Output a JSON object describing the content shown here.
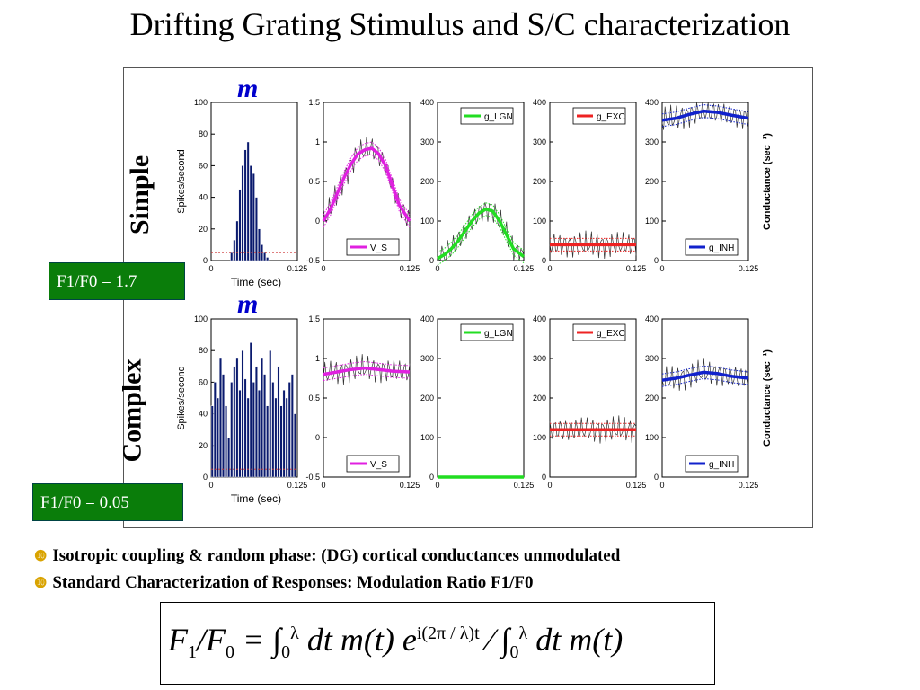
{
  "title": "Drifting Grating Stimulus and S/C characterization",
  "rows": [
    {
      "label": "Simple",
      "ratio": "F1/F0 = 1.7",
      "m_label": "m"
    },
    {
      "label": "Complex",
      "ratio": "F1/F0 = 0.05",
      "m_label": "m"
    }
  ],
  "bullets": [
    "Isotropic coupling & random phase: (DG) cortical conductances unmodulated",
    "Standard Characterization of Responses: Modulation Ratio F1/F0"
  ],
  "bullet_marker": "❿",
  "formula": {
    "lhs": "F",
    "lhs_sub1": "1",
    "slash": "/",
    "lhs2": "F",
    "lhs_sub0": "0",
    "eq": " = ∫",
    "upper": "λ",
    "lower": "0",
    "body1": "dt m(t) e",
    "exp": "i(2π / λ)t",
    "divider": " ⁄ ∫",
    "body2": "dt m(t)"
  },
  "chart_data": [
    {
      "type": "bar",
      "row": "Simple",
      "panel": "spikes",
      "ylabel": "Spikes/second",
      "xlabel": "Time (sec)",
      "xlim": [
        0,
        0.125
      ],
      "ylim": [
        0,
        100
      ],
      "xticks": [
        "0",
        "0.125"
      ],
      "yticks": [
        "0",
        "20",
        "40",
        "60",
        "80",
        "100"
      ],
      "bin_width": 0.004,
      "x_start": 0.028,
      "values": [
        5,
        13,
        25,
        45,
        60,
        70,
        75,
        60,
        55,
        40,
        20,
        10,
        5,
        2
      ]
    },
    {
      "type": "line",
      "row": "Simple",
      "panel": "V",
      "legend": "V_S",
      "legend_color": "#e020e0",
      "xlim": [
        0,
        0.125
      ],
      "ylim": [
        -0.5,
        1.5
      ],
      "xticks": [
        "0",
        "0.125"
      ],
      "yticks": [
        "-0.5",
        "0",
        "0.5",
        "1",
        "1.5"
      ],
      "x": [
        0,
        0.01,
        0.02,
        0.03,
        0.04,
        0.05,
        0.06,
        0.07,
        0.08,
        0.09,
        0.1,
        0.11,
        0.125
      ],
      "values": [
        0,
        0.15,
        0.35,
        0.55,
        0.72,
        0.85,
        0.9,
        0.92,
        0.85,
        0.7,
        0.45,
        0.2,
        0
      ]
    },
    {
      "type": "line",
      "row": "Simple",
      "panel": "gLGN",
      "legend": "g_LGN",
      "legend_color": "#22dd22",
      "xlim": [
        0,
        0.125
      ],
      "ylim": [
        0,
        400
      ],
      "xticks": [
        "0",
        "0.125"
      ],
      "yticks": [
        "0",
        "100",
        "200",
        "300",
        "400"
      ],
      "x": [
        0,
        0.01,
        0.02,
        0.03,
        0.04,
        0.05,
        0.06,
        0.07,
        0.08,
        0.09,
        0.1,
        0.11,
        0.125
      ],
      "values": [
        5,
        15,
        30,
        50,
        75,
        100,
        120,
        130,
        125,
        100,
        65,
        30,
        10
      ]
    },
    {
      "type": "line",
      "row": "Simple",
      "panel": "gEXC",
      "legend": "g_EXC",
      "legend_color": "#ee2222",
      "xlim": [
        0,
        0.125
      ],
      "ylim": [
        0,
        400
      ],
      "xticks": [
        "0",
        "0.125"
      ],
      "yticks": [
        "0",
        "100",
        "200",
        "300",
        "400"
      ],
      "x": [
        0,
        0.125
      ],
      "values": [
        40,
        40
      ]
    },
    {
      "type": "line",
      "row": "Simple",
      "panel": "gINH",
      "legend": "g_INH",
      "legend_color": "#1122cc",
      "ylabel": "Conductance (sec⁻¹)",
      "xlim": [
        0,
        0.125
      ],
      "ylim": [
        0,
        400
      ],
      "xticks": [
        "0",
        "0.125"
      ],
      "yticks": [
        "0",
        "100",
        "200",
        "300",
        "400"
      ],
      "x": [
        0,
        0.02,
        0.04,
        0.06,
        0.08,
        0.1,
        0.125
      ],
      "values": [
        355,
        360,
        370,
        378,
        375,
        368,
        360
      ]
    },
    {
      "type": "bar",
      "row": "Complex",
      "panel": "spikes",
      "ylabel": "Spikes/second",
      "xlabel": "Time (sec)",
      "xlim": [
        0,
        0.125
      ],
      "ylim": [
        0,
        100
      ],
      "xticks": [
        "0",
        "0.125"
      ],
      "yticks": [
        "0",
        "20",
        "40",
        "60",
        "80",
        "100"
      ],
      "bin_width": 0.004,
      "x_start": 0,
      "values": [
        45,
        60,
        50,
        75,
        65,
        45,
        25,
        60,
        70,
        75,
        55,
        80,
        62,
        50,
        85,
        60,
        70,
        55,
        75,
        65,
        45,
        80,
        60,
        50,
        70,
        45,
        55,
        50,
        60,
        65,
        40
      ]
    },
    {
      "type": "line",
      "row": "Complex",
      "panel": "V",
      "legend": "V_S",
      "legend_color": "#e020e0",
      "xlim": [
        0,
        0.125
      ],
      "ylim": [
        -0.5,
        1.5
      ],
      "xticks": [
        "0",
        "0.125"
      ],
      "yticks": [
        "-0.5",
        "0",
        "0.5",
        "1",
        "1.5"
      ],
      "x": [
        0,
        0.02,
        0.04,
        0.06,
        0.08,
        0.1,
        0.125
      ],
      "values": [
        0.8,
        0.83,
        0.86,
        0.88,
        0.86,
        0.84,
        0.83
      ]
    },
    {
      "type": "line",
      "row": "Complex",
      "panel": "gLGN",
      "legend": "g_LGN",
      "legend_color": "#22dd22",
      "xlim": [
        0,
        0.125
      ],
      "ylim": [
        0,
        400
      ],
      "xticks": [
        "0",
        "0.125"
      ],
      "yticks": [
        "0",
        "100",
        "200",
        "300",
        "400"
      ],
      "x": [
        0,
        0.125
      ],
      "values": [
        0,
        0
      ]
    },
    {
      "type": "line",
      "row": "Complex",
      "panel": "gEXC",
      "legend": "g_EXC",
      "legend_color": "#ee2222",
      "xlim": [
        0,
        0.125
      ],
      "ylim": [
        0,
        400
      ],
      "xticks": [
        "0",
        "0.125"
      ],
      "yticks": [
        "0",
        "100",
        "200",
        "300",
        "400"
      ],
      "x": [
        0,
        0.125
      ],
      "values": [
        120,
        120
      ]
    },
    {
      "type": "line",
      "row": "Complex",
      "panel": "gINH",
      "legend": "g_INH",
      "legend_color": "#1122cc",
      "ylabel": "Conductance (sec⁻¹)",
      "xlim": [
        0,
        0.125
      ],
      "ylim": [
        0,
        400
      ],
      "xticks": [
        "0",
        "0.125"
      ],
      "yticks": [
        "0",
        "100",
        "200",
        "300",
        "400"
      ],
      "x": [
        0,
        0.02,
        0.04,
        0.06,
        0.08,
        0.1,
        0.125
      ],
      "values": [
        245,
        250,
        258,
        265,
        262,
        255,
        250
      ]
    }
  ]
}
